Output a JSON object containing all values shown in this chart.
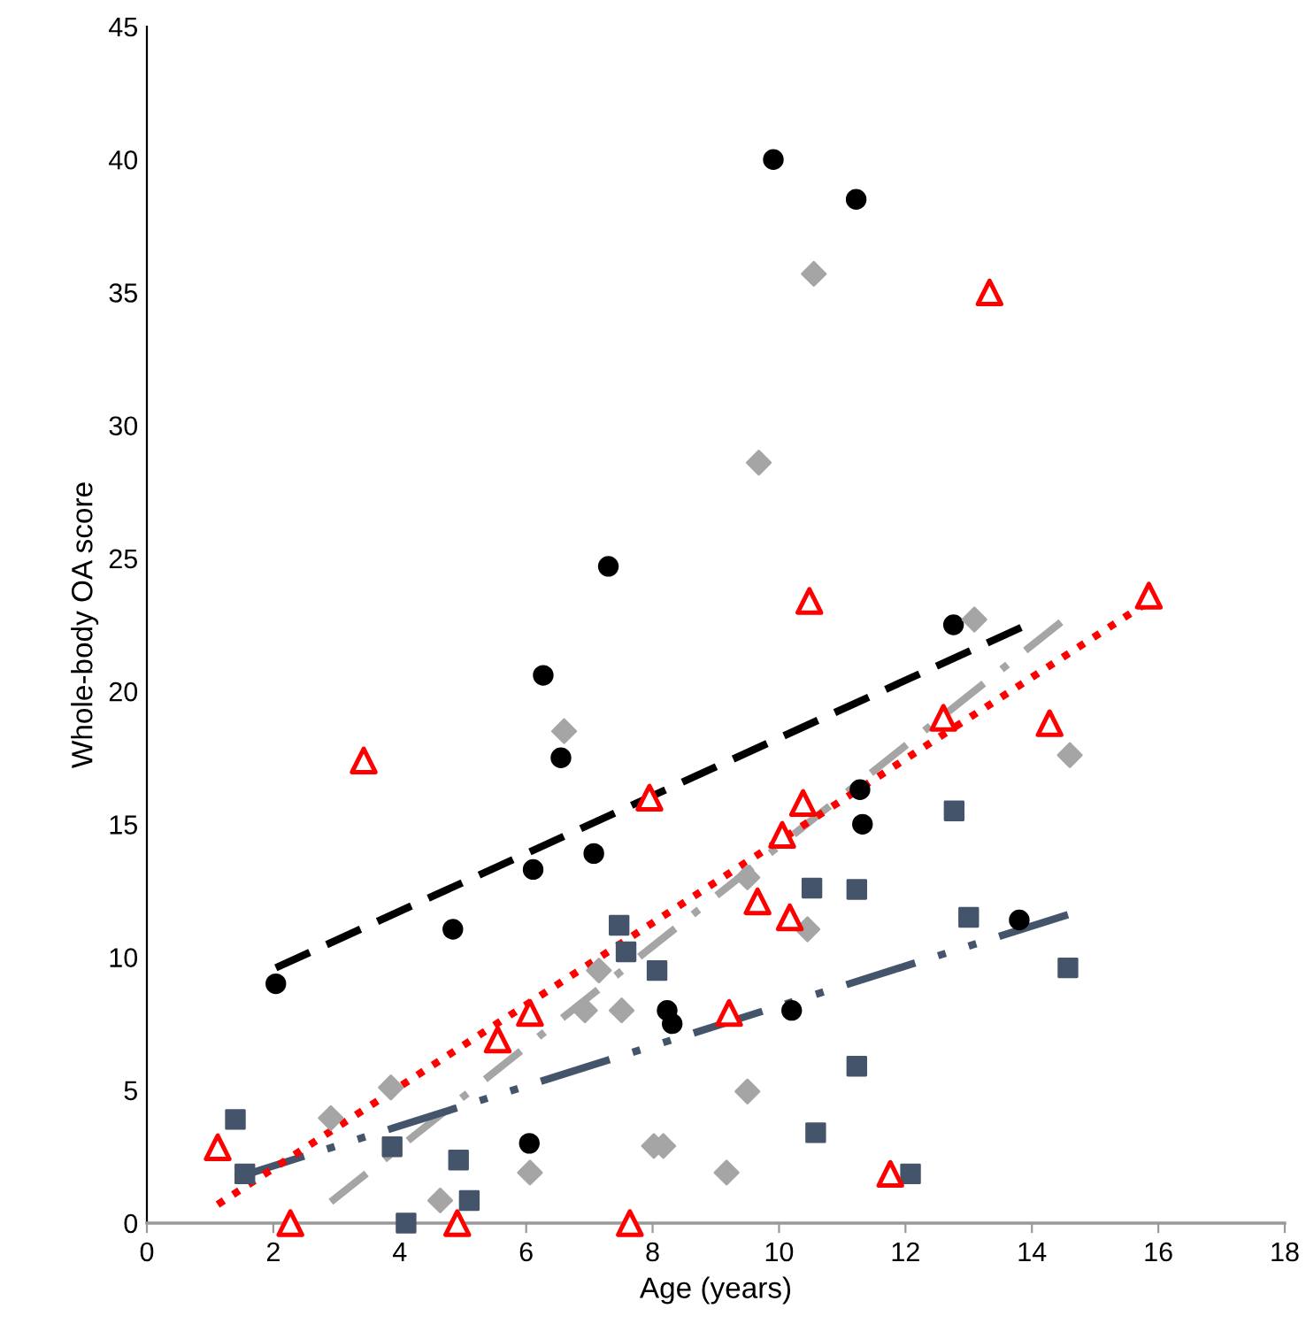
{
  "chart_data": {
    "type": "scatter",
    "xlabel": "Age (years)",
    "ylabel": "Whole-body OA score",
    "xlim": [
      0,
      18
    ],
    "xticks": [
      0,
      2,
      4,
      6,
      8,
      10,
      12,
      14,
      16,
      18
    ],
    "ylim": [
      0,
      45
    ],
    "yticks": [
      0,
      5,
      10,
      15,
      20,
      25,
      30,
      35,
      40,
      45
    ],
    "grid": false,
    "legend": false,
    "series": [
      {
        "marker": "circle",
        "color": "#000000",
        "x": [
          2.04,
          4.84,
          6.11,
          6.27,
          6.55,
          7.07,
          7.3,
          8.23,
          8.31,
          6.05,
          9.91,
          10.2,
          11.22,
          11.28,
          11.32,
          12.76,
          13.8
        ],
        "values": [
          9.0,
          11.05,
          13.3,
          20.6,
          17.5,
          13.9,
          24.7,
          8,
          7.5,
          3,
          40.0,
          8,
          38.5,
          16.3,
          15,
          22.5,
          11.4
        ]
      },
      {
        "marker": "diamond",
        "color": "#a5a5a5",
        "x": [
          2.91,
          3.86,
          4.64,
          6.06,
          6.6,
          6.93,
          7.15,
          7.51,
          8.02,
          8.17,
          9.17,
          9.5,
          9.5,
          9.68,
          10.45,
          10.55,
          13.09,
          14.6
        ],
        "values": [
          3.95,
          5.1,
          0.85,
          1.9,
          18.5,
          8,
          9.5,
          8,
          2.9,
          2.9,
          1.9,
          4.95,
          13.0,
          28.6,
          11.05,
          35.7,
          22.7,
          17.6
        ]
      },
      {
        "marker": "square",
        "color": "#44546a",
        "x": [
          1.4,
          1.55,
          3.88,
          4.1,
          4.93,
          5.1,
          7.47,
          7.58,
          8.07,
          10.52,
          10.58,
          11.23,
          11.23,
          12.08,
          12.77,
          13.0,
          14.57
        ],
        "values": [
          3.9,
          1.85,
          2.87,
          0,
          2.37,
          0.85,
          11.2,
          10.2,
          9.5,
          12.6,
          3.4,
          12.55,
          5.9,
          1.85,
          15.5,
          11.5,
          9.6
        ]
      },
      {
        "marker": "triangle",
        "color": "#ff0000",
        "x": [
          1.12,
          2.27,
          3.43,
          4.91,
          5.55,
          6.06,
          7.64,
          7.95,
          9.21,
          9.66,
          10.05,
          10.17,
          10.38,
          10.48,
          11.76,
          12.6,
          13.33,
          14.28,
          15.85
        ],
        "values": [
          2.85,
          0,
          17.4,
          0,
          6.9,
          7.9,
          0,
          16.0,
          7.9,
          12.1,
          14.6,
          11.5,
          15.8,
          23.4,
          1.85,
          19.0,
          35.0,
          18.8,
          23.6
        ]
      },
      {
        "type": "line",
        "line_style": "dashed",
        "color": "#000000",
        "x": [
          2.04,
          13.83
        ],
        "values": [
          9.6,
          22.4
        ]
      },
      {
        "type": "line",
        "line_style": "dashdot",
        "color": "#a5a5a5",
        "x": [
          2.91,
          14.46
        ],
        "values": [
          0.8,
          22.6
        ]
      },
      {
        "type": "line",
        "line_style": "dashdotdot",
        "color": "#44546a",
        "x": [
          1.4,
          14.57
        ],
        "values": [
          1.7,
          11.6
        ]
      },
      {
        "type": "line",
        "line_style": "dotted",
        "color": "#ff0000",
        "x": [
          1.12,
          15.8
        ],
        "values": [
          0.7,
          23.3
        ]
      }
    ]
  }
}
